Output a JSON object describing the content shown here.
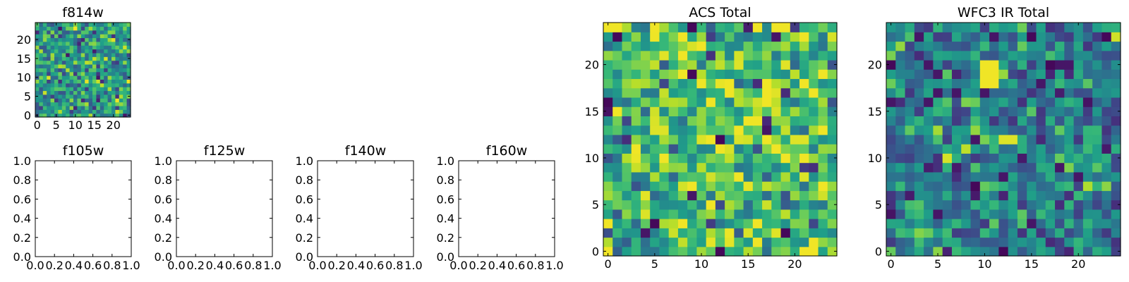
{
  "colors": {
    "colormap": "viridis",
    "axes_edge": "#000000",
    "background": "#ffffff"
  },
  "chart_data": [
    {
      "id": "f814w",
      "type": "heatmap",
      "title": "f814w",
      "colormap": "viridis",
      "grid": false,
      "xlim": [
        -0.5,
        24.5
      ],
      "ylim": [
        -0.5,
        24.5
      ],
      "xticks": [
        0,
        5,
        10,
        15,
        20
      ],
      "xtick_labels": [
        "0",
        "5",
        "10",
        "15",
        "20"
      ],
      "yticks": [
        0,
        5,
        10,
        15,
        20
      ],
      "ytick_labels": [
        "0",
        "5",
        "10",
        "15",
        "20"
      ],
      "rows": 25,
      "cols": 25,
      "value_range": [
        0,
        1
      ],
      "seed": 814
    },
    {
      "id": "f105w",
      "type": "scatter",
      "title": "f105w",
      "empty": true,
      "grid": false,
      "xlim": [
        0,
        1
      ],
      "ylim": [
        0,
        1
      ],
      "xtick_labels": [
        "0.0",
        "0.2",
        "0.4",
        "0.6",
        "0.8",
        "1.0"
      ],
      "ytick_labels": [
        "0.0",
        "0.2",
        "0.4",
        "0.6",
        "0.8",
        "1.0"
      ]
    },
    {
      "id": "f125w",
      "type": "scatter",
      "title": "f125w",
      "empty": true,
      "grid": false,
      "xlim": [
        0,
        1
      ],
      "ylim": [
        0,
        1
      ],
      "xtick_labels": [
        "0.0",
        "0.2",
        "0.4",
        "0.6",
        "0.8",
        "1.0"
      ],
      "ytick_labels": [
        "0.0",
        "0.2",
        "0.4",
        "0.6",
        "0.8",
        "1.0"
      ]
    },
    {
      "id": "f140w",
      "type": "scatter",
      "title": "f140w",
      "empty": true,
      "grid": false,
      "xlim": [
        0,
        1
      ],
      "ylim": [
        0,
        1
      ],
      "xtick_labels": [
        "0.0",
        "0.2",
        "0.4",
        "0.6",
        "0.8",
        "1.0"
      ],
      "ytick_labels": [
        "0.0",
        "0.2",
        "0.4",
        "0.6",
        "0.8",
        "1.0"
      ]
    },
    {
      "id": "f160w",
      "type": "scatter",
      "title": "f160w",
      "empty": true,
      "grid": false,
      "xlim": [
        0,
        1
      ],
      "ylim": [
        0,
        1
      ],
      "xtick_labels": [
        "0.0",
        "0.2",
        "0.4",
        "0.6",
        "0.8",
        "1.0"
      ],
      "ytick_labels": [
        "0.0",
        "0.2",
        "0.4",
        "0.6",
        "0.8",
        "1.0"
      ]
    },
    {
      "id": "acs-total",
      "type": "heatmap",
      "title": "ACS Total",
      "colormap": "viridis",
      "grid": false,
      "xlim": [
        -0.5,
        24.5
      ],
      "ylim": [
        -0.5,
        24.5
      ],
      "xticks": [
        0,
        5,
        10,
        15,
        20
      ],
      "xtick_labels": [
        "0",
        "5",
        "10",
        "15",
        "20"
      ],
      "yticks": [
        0,
        5,
        10,
        15,
        20
      ],
      "ytick_labels": [
        "0",
        "5",
        "10",
        "15",
        "20"
      ],
      "rows": 25,
      "cols": 25,
      "value_range": [
        0,
        1
      ],
      "seed": 1701,
      "bias": 0.15,
      "hotspots": [
        {
          "col": 17,
          "row": 16,
          "value": 0.98
        },
        {
          "col": 17,
          "row": 17,
          "value": 0.98
        },
        {
          "col": 17,
          "row": 18,
          "value": 0.98
        },
        {
          "col": 20,
          "row": 12,
          "value": 0.95
        },
        {
          "col": 21,
          "row": 12,
          "value": 0.95
        },
        {
          "col": 5,
          "row": 13,
          "value": 0.95
        },
        {
          "col": 6,
          "row": 13,
          "value": 0.95
        },
        {
          "col": 9,
          "row": 24,
          "value": 0.02
        },
        {
          "col": 1,
          "row": 23,
          "value": 0.02
        },
        {
          "col": 0,
          "row": 16,
          "value": 0.02
        },
        {
          "col": 0,
          "row": 15,
          "value": 0.05
        },
        {
          "col": 9,
          "row": 19,
          "value": 0.02
        },
        {
          "col": 12,
          "row": 12,
          "value": 0.02
        },
        {
          "col": 5,
          "row": 3,
          "value": 0.02
        },
        {
          "col": 12,
          "row": 0,
          "value": 0.02
        },
        {
          "col": 19,
          "row": 2,
          "value": 0.02
        }
      ]
    },
    {
      "id": "wfc3-ir-total",
      "type": "heatmap",
      "title": "WFC3 IR Total",
      "colormap": "viridis",
      "grid": false,
      "xlim": [
        -0.5,
        24.5
      ],
      "ylim": [
        -0.5,
        24.5
      ],
      "xticks": [
        0,
        5,
        10,
        15,
        20
      ],
      "xtick_labels": [
        "0",
        "5",
        "10",
        "15",
        "20"
      ],
      "yticks": [
        0,
        5,
        10,
        15,
        20
      ],
      "ytick_labels": [
        "0",
        "5",
        "10",
        "15",
        "20"
      ],
      "rows": 25,
      "cols": 25,
      "value_range": [
        0,
        1
      ],
      "seed": 3105,
      "bias": -0.12,
      "hotspots": [
        {
          "col": 10,
          "row": 20,
          "value": 0.98
        },
        {
          "col": 11,
          "row": 20,
          "value": 0.98
        },
        {
          "col": 10,
          "row": 19,
          "value": 0.98
        },
        {
          "col": 11,
          "row": 19,
          "value": 0.98
        },
        {
          "col": 10,
          "row": 18,
          "value": 0.98
        },
        {
          "col": 11,
          "row": 18,
          "value": 0.98
        },
        {
          "col": 12,
          "row": 12,
          "value": 0.95
        },
        {
          "col": 13,
          "row": 12,
          "value": 0.95
        },
        {
          "col": 0,
          "row": 20,
          "value": 0.02
        },
        {
          "col": 15,
          "row": 23,
          "value": 0.02
        },
        {
          "col": 23,
          "row": 23,
          "value": 0.02
        },
        {
          "col": 17,
          "row": 20,
          "value": 0.02
        },
        {
          "col": 9,
          "row": 7,
          "value": 0.02
        },
        {
          "col": 12,
          "row": 0,
          "value": 0.02
        },
        {
          "col": 0,
          "row": 4,
          "value": 0.05
        },
        {
          "col": 21,
          "row": 16,
          "value": 0.05
        }
      ]
    }
  ]
}
